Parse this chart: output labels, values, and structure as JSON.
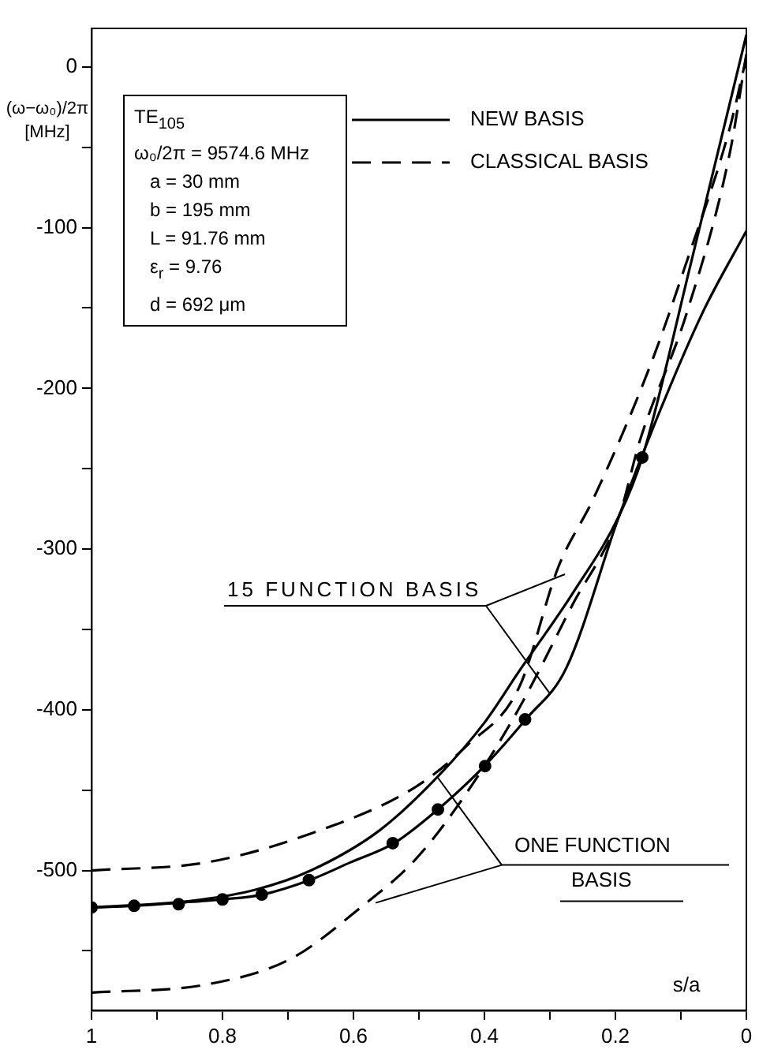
{
  "chart_data": {
    "type": "line",
    "xlabel": "s/a",
    "ylabel": "(ω−ω₀)/2π [MHz]",
    "xlim": [
      1,
      0
    ],
    "ylim": [
      -587,
      24
    ],
    "xticks": [
      1,
      {
        "value": 0.9,
        "label": null
      },
      0.8,
      {
        "value": 0.7,
        "label": null
      },
      0.6,
      {
        "value": 0.5,
        "label": null
      },
      0.4,
      {
        "value": 0.3,
        "label": null
      },
      0.2,
      {
        "value": 0.1,
        "label": null
      },
      0
    ],
    "yticks": [
      0,
      {
        "value": -50,
        "label": null
      },
      -100,
      {
        "value": -150,
        "label": null
      },
      -200,
      {
        "value": -250,
        "label": null
      },
      -300,
      {
        "value": -350,
        "label": null
      },
      -400,
      {
        "value": -450,
        "label": null
      },
      -500,
      {
        "value": -550,
        "label": null
      }
    ],
    "grid": false,
    "legend": "top right",
    "marker": "none",
    "series": [
      {
        "name": "NEW BASIS",
        "color": "#000000",
        "line_style": "solid",
        "x": [
          1,
          0.935,
          0.866,
          0.8,
          0.739,
          0.667,
          0.605,
          0.538,
          0.471,
          0.4,
          0.337,
          0.275,
          0.194,
          0.139,
          0.067,
          0
        ],
        "values": [
          -523,
          -522,
          -520,
          -518,
          -515,
          -506,
          -495,
          -483,
          -462,
          -435,
          -406,
          -374,
          -279,
          -221,
          -153,
          -102
        ]
      },
      {
        "color": "#000000",
        "line_style": "solid",
        "x": [
          1,
          0.85,
          0.75,
          0.665,
          0.56,
          0.47,
          0.4,
          0.347,
          0.266,
          0.194,
          0.159,
          0.084,
          0
        ],
        "values": [
          -523,
          -519,
          -512,
          -500,
          -475,
          -441,
          -408,
          -376,
          -328,
          -279,
          -243,
          -121,
          20
        ]
      },
      {
        "name": "CLASSICAL BASIS",
        "color": "#000000",
        "line_style": "dashed",
        "x": [
          1,
          0.825,
          0.665,
          0.505,
          0.426,
          0.347,
          0.287,
          0.234,
          0.146,
          0.091,
          0.026,
          0
        ],
        "values": [
          -500,
          -495,
          -477,
          -448,
          -422,
          -386,
          -311,
          -269,
          -185,
          -121,
          -39,
          6
        ]
      },
      {
        "color": "#000000",
        "line_style": "dashed",
        "x": [
          1,
          0.825,
          0.696,
          0.586,
          0.505,
          0.426,
          0.347,
          0.266,
          0.194,
          0.163,
          0.091,
          0.026,
          0
        ],
        "values": [
          -576,
          -571,
          -555,
          -522,
          -493,
          -451,
          -399,
          -335,
          -279,
          -233,
          -153,
          -55,
          8
        ]
      },
      {
        "type": "scatter",
        "marker": "circle",
        "color": "#000000",
        "x": [
          1,
          0.935,
          0.867,
          0.8,
          0.74,
          0.668,
          0.54,
          0.471,
          0.399,
          0.338,
          0.159
        ],
        "values": [
          -523,
          -522,
          -521,
          -518,
          -515,
          -506,
          -483,
          -462,
          -435,
          -406,
          -243
        ]
      }
    ],
    "annotations": [
      "TE$_{105}$",
      "ω₀/2π = 9574.6 MHz",
      "a = 30 mm",
      "b = 195 mm",
      "L = 91.76 mm",
      "ε$_{r}$ = 9.76",
      "d = 692 μm",
      {
        "text": "15 FUNCTION BASIS",
        "x": 0.3,
        "y": -390
      },
      {
        "text": "ONE FUNCTION BASIS",
        "x": 0.471,
        "y": -442
      }
    ]
  }
}
